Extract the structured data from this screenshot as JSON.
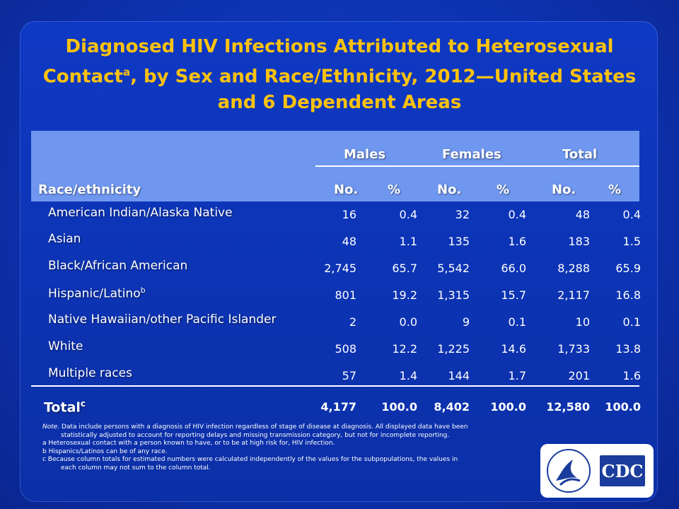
{
  "title": {
    "line1": "Diagnosed HIV Infections Attributed to Heterosexual",
    "line2a": "Contact",
    "line2sup": "a",
    "line2b": ", by Sex and Race/Ethnicity, 2012—United States",
    "line3": "and 6 Dependent Areas"
  },
  "header": {
    "race_col": "Race/ethnicity",
    "groups": [
      "Males",
      "Females",
      "Total"
    ],
    "sub": [
      "No.",
      "%",
      "No.",
      "%",
      "No.",
      "%"
    ]
  },
  "rows": [
    {
      "label": "American Indian/Alaska Native",
      "sup": "",
      "values": [
        "16",
        "0.4",
        "32",
        "0.4",
        "48",
        "0.4"
      ]
    },
    {
      "label": "Asian",
      "sup": "",
      "values": [
        "48",
        "1.1",
        "135",
        "1.6",
        "183",
        "1.5"
      ]
    },
    {
      "label": "Black/African American",
      "sup": "",
      "values": [
        "2,745",
        "65.7",
        "5,542",
        "66.0",
        "8,288",
        "65.9"
      ]
    },
    {
      "label": "Hispanic/Latino",
      "sup": "b",
      "values": [
        "801",
        "19.2",
        "1,315",
        "15.7",
        "2,117",
        "16.8"
      ]
    },
    {
      "label": "Native Hawaiian/other Pacific Islander",
      "sup": "",
      "values": [
        "2",
        "0.0",
        "9",
        "0.1",
        "10",
        "0.1"
      ]
    },
    {
      "label": "White",
      "sup": "",
      "values": [
        "508",
        "12.2",
        "1,225",
        "14.6",
        "1,733",
        "13.8"
      ]
    },
    {
      "label": "Multiple races",
      "sup": "",
      "values": [
        "57",
        "1.4",
        "144",
        "1.7",
        "201",
        "1.6"
      ]
    }
  ],
  "total": {
    "label": "Total",
    "sup": "c",
    "values": [
      "4,177",
      "100.0",
      "8,402",
      "100.0",
      "12,580",
      "100.0"
    ]
  },
  "notes": {
    "note_label": "Note.",
    "note_text1": "Data include persons with a diagnosis of HIV infection regardless of stage of disease at diagnosis. All displayed data have been",
    "note_text2": "statistically adjusted to account for reporting delays and missing transmission category, but not for incomplete reporting.",
    "a": "a Heterosexual contact with a person known to have, or to be at high risk for, HIV infection.",
    "b": "b Hispanics/Latinos can be of any race.",
    "c1": "c Because column totals for estimated numbers were calculated independently of the values for the subpopulations, the values in",
    "c2": "each column may not sum to the column total."
  },
  "logo": {
    "text": "CDC"
  },
  "colors": {
    "title": "#ffc20e",
    "header_band": "#6f97ef",
    "background": "#0d32b0"
  }
}
